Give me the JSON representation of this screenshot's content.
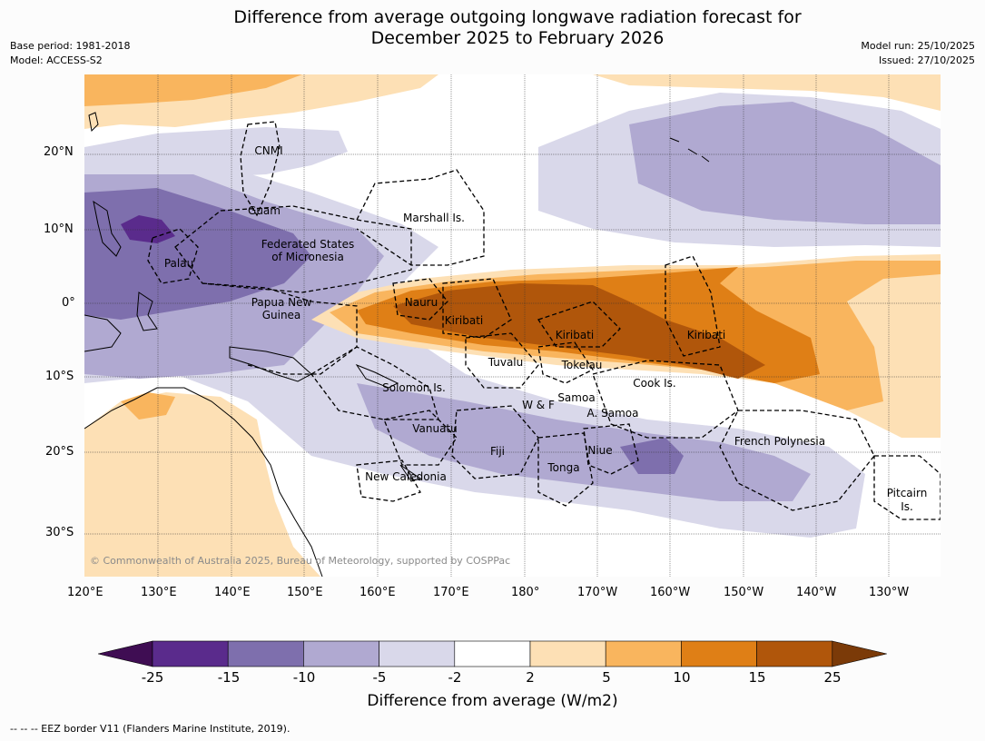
{
  "header": {
    "title_line1": "Difference from average outgoing longwave radiation forecast for",
    "title_line2": "December 2025 to February 2026",
    "base_period": "Base period: 1981-2018",
    "model": "Model: ACCESS-S2",
    "model_run": "Model run: 25/10/2025",
    "issued": "Issued: 27/10/2025"
  },
  "map": {
    "copyright": "© Commonwealth of Australia 2025, Bureau of Meteorology, supported by COSPPac",
    "lat_labels": [
      "20°N",
      "10°N",
      "0°",
      "10°S",
      "20°S",
      "30°S"
    ],
    "lon_labels": [
      "120°E",
      "130°E",
      "140°E",
      "150°E",
      "160°E",
      "170°E",
      "180°",
      "170°W",
      "160°W",
      "150°W",
      "140°W",
      "130°W"
    ],
    "regions": {
      "cnmi": "CNMI",
      "guam": "Guam",
      "marshall": "Marshall Is.",
      "fsm1": "Federated States",
      "fsm2": "of Micronesia",
      "palau": "Palau",
      "png1": "Papua New",
      "png2": "Guinea",
      "nauru": "Nauru",
      "kiribati_w": "Kiribati",
      "kiribati_c": "Kiribati",
      "kiribati_e": "Kiribati",
      "tuvalu": "Tuvalu",
      "tokelau": "Tokelau",
      "cook": "Cook Is.",
      "solomon": "Solomon Is.",
      "samoa": "Samoa",
      "wf": "W & F",
      "asamoa": "A. Samoa",
      "vanuatu": "Vanuatu",
      "fiji": "Fiji",
      "niue": "Niue",
      "tonga": "Tonga",
      "newcal": "New Caledonia",
      "frpoly": "French Polynesia",
      "pitcairn1": "Pitcairn",
      "pitcairn2": "Is."
    }
  },
  "colorbar": {
    "ticks": [
      "-25",
      "-15",
      "-10",
      "-5",
      "-2",
      "2",
      "5",
      "10",
      "15",
      "25"
    ],
    "colors": [
      "#3f0d53",
      "#5a2b8c",
      "#7e6fad",
      "#b0a9d1",
      "#d9d8ea",
      "#ffffff",
      "#fde0b5",
      "#f9b55e",
      "#df7f16",
      "#b0560b",
      "#7b3a08"
    ],
    "title": "Difference from average (W/m2)"
  },
  "footer": {
    "eez_note": "--  --  -- EEZ border V11 (Flanders Marine Institute, 2019)."
  }
}
